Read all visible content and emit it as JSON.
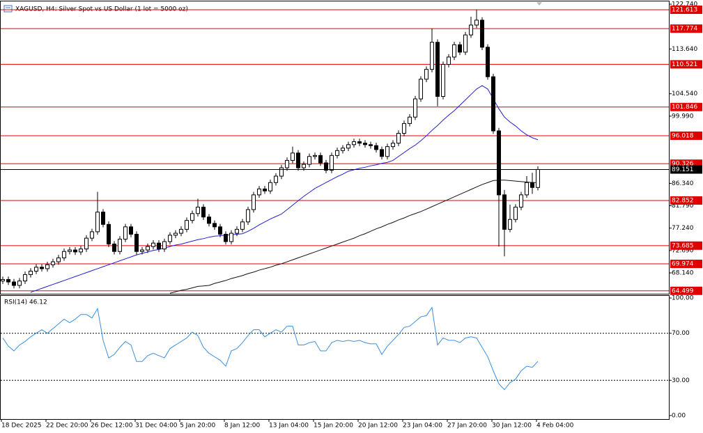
{
  "chart_data": [
    {
      "type": "candlestick",
      "title": "XAGUSD, H4:  Silver Spot vs US Dollar (1 lot = 5000 oz)",
      "open": [
        66.5,
        66.8,
        66.3,
        65.6,
        66.5,
        67.8,
        68.5,
        69.3,
        69.0,
        69.8,
        70.4,
        71.2,
        72.5,
        72.8,
        72.4,
        73.0,
        75.2,
        76.5,
        80.5,
        78.0,
        74.0,
        72.5,
        75.0,
        77.5,
        76.0,
        72.5,
        72.8,
        73.5,
        74.2,
        73.0,
        74.5,
        75.8,
        76.2,
        77.0,
        78.8,
        80.2,
        81.5,
        79.5,
        78.2,
        77.5,
        76.0,
        74.5,
        76.2,
        77.0,
        78.5,
        81.0,
        84.0,
        85.2,
        84.8,
        86.5,
        87.8,
        89.5,
        91.0,
        92.5,
        89.5,
        90.2,
        91.8,
        92.0,
        90.5,
        89.0,
        92.0,
        93.0,
        93.5,
        94.2,
        94.8,
        94.5,
        94.2,
        94.0,
        93.2,
        91.8,
        93.8,
        94.5,
        96.5,
        98.5,
        99.8,
        103.5,
        107.5,
        109.5,
        115.0,
        104.0,
        110.5,
        112.0,
        114.5,
        113.0,
        116.5,
        118.5,
        119.5,
        114.0,
        108.0,
        97.0,
        84.0,
        77.0,
        79.0,
        81.5,
        84.0,
        86.5,
        85.5
      ],
      "high": [
        67.4,
        67.4,
        66.9,
        67.1,
        68.4,
        69.1,
        69.9,
        69.9,
        70.4,
        71.0,
        71.8,
        73.1,
        73.4,
        73.4,
        73.6,
        75.8,
        77.1,
        84.6,
        81.1,
        78.6,
        74.6,
        75.6,
        78.1,
        78.1,
        76.6,
        73.4,
        74.1,
        74.8,
        74.8,
        75.1,
        76.4,
        76.8,
        77.6,
        79.4,
        80.8,
        83.2,
        82.1,
        80.1,
        78.8,
        78.1,
        76.6,
        76.8,
        77.6,
        79.1,
        81.6,
        84.6,
        85.8,
        85.8,
        87.1,
        88.4,
        90.1,
        91.6,
        93.8,
        93.1,
        90.8,
        92.4,
        92.6,
        92.6,
        91.1,
        92.6,
        93.6,
        94.1,
        94.8,
        95.4,
        95.4,
        95.1,
        94.8,
        94.6,
        93.8,
        94.4,
        95.1,
        97.1,
        99.1,
        100.4,
        104.1,
        108.1,
        110.1,
        117.8,
        115.6,
        111.1,
        112.6,
        115.1,
        115.1,
        117.1,
        120.2,
        121.6,
        120.1,
        114.6,
        108.6,
        97.6,
        85.0,
        82.0,
        82.1,
        84.6,
        87.8,
        88.5,
        89.8
      ],
      "low": [
        65.9,
        65.7,
        65.0,
        65.0,
        65.9,
        67.2,
        67.9,
        68.4,
        68.4,
        69.2,
        69.8,
        70.6,
        71.9,
        71.8,
        71.8,
        72.4,
        74.6,
        75.9,
        77.4,
        73.4,
        71.9,
        71.9,
        74.4,
        75.4,
        71.9,
        71.9,
        72.2,
        72.9,
        72.4,
        72.4,
        73.9,
        75.2,
        75.6,
        76.4,
        78.2,
        79.6,
        78.9,
        77.6,
        76.9,
        75.4,
        73.9,
        73.9,
        75.6,
        76.4,
        77.9,
        80.4,
        83.4,
        84.2,
        84.2,
        85.9,
        87.2,
        88.9,
        90.4,
        88.9,
        88.9,
        89.6,
        91.2,
        89.9,
        88.4,
        88.4,
        91.4,
        92.4,
        92.9,
        93.6,
        93.9,
        93.6,
        93.4,
        92.6,
        91.2,
        91.2,
        93.2,
        93.9,
        95.9,
        97.9,
        99.2,
        102.9,
        106.9,
        108.9,
        102.0,
        103.4,
        109.9,
        111.4,
        112.4,
        112.4,
        115.9,
        117.9,
        113.4,
        107.4,
        96.4,
        73.5,
        71.5,
        76.4,
        78.4,
        80.9,
        83.4,
        84.2,
        84.9
      ],
      "close": [
        66.8,
        66.3,
        65.6,
        66.5,
        67.8,
        68.5,
        69.3,
        69.0,
        69.8,
        70.4,
        71.2,
        72.5,
        72.8,
        72.4,
        73.0,
        75.2,
        76.5,
        80.5,
        78.0,
        74.0,
        72.5,
        75.0,
        77.5,
        76.0,
        72.5,
        72.8,
        73.5,
        74.2,
        73.0,
        74.5,
        75.8,
        76.2,
        77.0,
        78.8,
        80.2,
        81.5,
        79.5,
        78.2,
        77.5,
        76.0,
        74.5,
        76.2,
        77.0,
        78.5,
        81.0,
        84.0,
        85.2,
        84.8,
        86.5,
        87.8,
        89.5,
        91.0,
        92.5,
        89.5,
        90.2,
        91.8,
        92.0,
        90.5,
        89.0,
        92.0,
        93.0,
        93.5,
        94.2,
        94.8,
        94.5,
        94.2,
        94.0,
        93.2,
        91.8,
        93.8,
        94.5,
        96.5,
        98.5,
        99.8,
        103.5,
        107.5,
        109.5,
        115.0,
        104.0,
        110.5,
        112.0,
        114.5,
        113.0,
        116.5,
        118.5,
        119.5,
        114.0,
        108.0,
        97.0,
        84.0,
        77.0,
        79.0,
        81.5,
        84.0,
        86.5,
        85.5,
        89.151
      ],
      "series": [
        {
          "color": "#1f1fd0",
          "values": [
            null,
            null,
            null,
            null,
            null,
            64.2,
            64.6,
            65.0,
            65.4,
            65.8,
            66.2,
            66.6,
            67.0,
            67.4,
            67.8,
            68.2,
            68.6,
            69.0,
            69.4,
            69.8,
            70.2,
            70.6,
            71.0,
            71.4,
            71.8,
            72.1,
            72.4,
            72.7,
            72.9,
            73.2,
            73.5,
            73.8,
            74.0,
            74.3,
            74.6,
            74.9,
            75.1,
            75.4,
            75.6,
            75.7,
            75.8,
            75.9,
            76.0,
            76.1,
            76.6,
            77.2,
            77.9,
            78.5,
            79.1,
            79.6,
            80.1,
            81.0,
            81.9,
            82.8,
            83.7,
            84.5,
            85.3,
            85.9,
            86.5,
            87.1,
            87.7,
            88.2,
            88.8,
            89.1,
            89.4,
            89.6,
            89.9,
            90.1,
            90.4,
            90.6,
            91.0,
            91.8,
            92.6,
            93.4,
            94.1,
            95.0,
            96.0,
            97.1,
            98.1,
            99.2,
            100.2,
            101.1,
            102.2,
            103.3,
            104.4,
            105.5,
            106.2,
            105.5,
            103.5,
            101.5,
            99.8,
            98.8,
            98.0,
            97.0,
            96.2,
            95.6,
            95.2
          ]
        },
        {
          "color": "#111111",
          "values": [
            null,
            null,
            null,
            null,
            null,
            null,
            null,
            null,
            null,
            null,
            null,
            null,
            null,
            null,
            null,
            null,
            null,
            null,
            null,
            null,
            null,
            null,
            null,
            null,
            null,
            null,
            null,
            null,
            null,
            null,
            64.0,
            64.3,
            64.6,
            64.8,
            65.1,
            65.4,
            65.5,
            65.6,
            66.0,
            66.3,
            66.6,
            67.0,
            67.3,
            67.6,
            68.0,
            68.3,
            68.7,
            69.0,
            69.3,
            69.7,
            70.0,
            70.4,
            70.8,
            71.2,
            71.6,
            72.0,
            72.4,
            72.8,
            73.2,
            73.6,
            74.0,
            74.4,
            74.8,
            75.2,
            75.7,
            76.1,
            76.6,
            77.1,
            77.5,
            78.0,
            78.4,
            78.9,
            79.3,
            79.8,
            80.2,
            80.6,
            81.1,
            81.6,
            82.1,
            82.6,
            83.1,
            83.6,
            84.1,
            84.6,
            85.1,
            85.6,
            86.1,
            86.5,
            86.9,
            87.0,
            87.0,
            86.9,
            86.8,
            86.7,
            86.6,
            86.5,
            86.5
          ]
        }
      ],
      "levels": [
        121.613,
        117.774,
        110.521,
        101.846,
        96.018,
        90.326,
        82.852,
        73.685,
        69.974,
        64.499
      ],
      "level_color": "#e00000",
      "last_price": 89.151,
      "ylim": [
        63.9,
        123.31
      ],
      "yticks": [
        {
          "value": 122.74,
          "label": "122.740"
        },
        {
          "value": 113.64,
          "label": "113.640"
        },
        {
          "value": 104.54,
          "label": "104.540"
        },
        {
          "value": 99.99,
          "label": "99.990"
        },
        {
          "value": 86.34,
          "label": "86.340"
        },
        {
          "value": 81.79,
          "label": "81.790"
        },
        {
          "value": 77.24,
          "label": "77.240"
        },
        {
          "value": 72.69,
          "label": "72.690"
        },
        {
          "value": 68.14,
          "label": "68.140"
        }
      ]
    },
    {
      "type": "line",
      "title": "RSI(14) 46.12",
      "color": "#3a8fe0",
      "values": [
        66,
        59,
        55,
        60,
        63,
        67,
        70,
        73,
        70,
        74,
        78,
        82,
        79,
        82,
        86,
        86,
        83,
        91,
        64,
        49,
        52,
        58,
        63,
        60,
        46,
        46,
        51,
        53,
        51,
        49,
        57,
        60,
        63,
        66,
        71,
        68,
        58,
        53,
        50,
        47,
        42,
        55,
        57,
        62,
        68,
        73,
        73,
        67,
        70,
        73,
        71,
        76,
        76,
        60,
        60,
        62,
        63,
        55,
        55,
        62,
        64,
        63,
        64,
        63,
        64,
        62,
        61,
        61,
        52,
        59,
        64,
        69,
        75,
        76,
        80,
        84,
        85,
        92,
        60,
        66,
        64,
        64,
        62,
        66,
        67,
        66,
        58,
        50,
        38,
        27,
        22,
        28,
        31,
        38,
        42,
        41,
        46.12
      ],
      "levels": [
        70,
        30
      ],
      "ylim": [
        -3,
        102.4
      ],
      "yticks": [
        {
          "value": 100,
          "label": "100.00"
        },
        {
          "value": 70,
          "label": "70.00"
        },
        {
          "value": 30,
          "label": "30.00"
        },
        {
          "value": 0,
          "label": "0.00"
        }
      ],
      "x_labels": [
        "18 Dec 2025",
        "22 Dec 20:00",
        "26 Dec 12:00",
        "31 Dec 04:00",
        "5 Jan 20:00",
        "8 Jan 12:00",
        "13 Jan 04:00",
        "15 Jan 20:00",
        "20 Jan 12:00",
        "23 Jan 04:00",
        "27 Jan 20:00",
        "30 Jan 12:00",
        "4 Feb 04:00"
      ]
    }
  ]
}
